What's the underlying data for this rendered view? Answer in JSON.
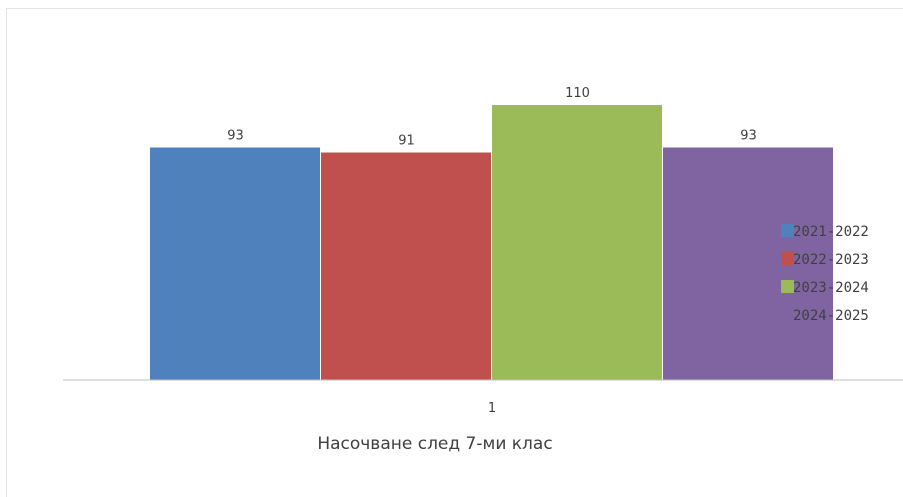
{
  "chart_data": {
    "type": "bar",
    "title": "Насочване след 7-ми клас",
    "categories": [
      "1"
    ],
    "series": [
      {
        "name": "2021-2022",
        "values": [
          93
        ],
        "color": "#4f81bd"
      },
      {
        "name": "2022-2023",
        "values": [
          91
        ],
        "color": "#c0504d"
      },
      {
        "name": "2023-2024",
        "values": [
          110
        ],
        "color": "#9bbb59"
      },
      {
        "name": "2024-2025",
        "values": [
          93
        ],
        "color": "#8064a2"
      }
    ],
    "xlabel": "",
    "ylabel": "",
    "ylim": [
      0,
      120
    ],
    "grid": false,
    "legend": "right",
    "data_labels": true
  }
}
